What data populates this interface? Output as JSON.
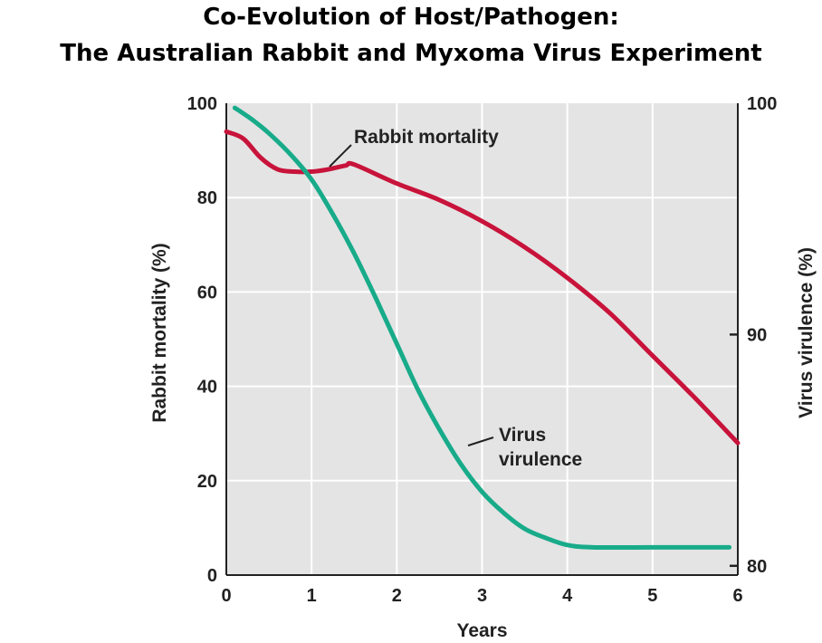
{
  "title_line1": "Co-Evolution of Host/Pathogen:",
  "title_line2": "The Australian Rabbit and Myxoma Virus Experiment",
  "chart_data": {
    "type": "line",
    "xlabel": "Years",
    "ylabel_left": "Rabbit mortality (%)",
    "ylabel_right": "Virus virulence (%)",
    "xlim": [
      0,
      6
    ],
    "ylim_left": [
      0,
      100
    ],
    "ylim_right": [
      79.6,
      100
    ],
    "x_ticks": [
      "0",
      "1",
      "2",
      "3",
      "4",
      "5",
      "6"
    ],
    "y_ticks_left": [
      "0",
      "20",
      "40",
      "60",
      "80",
      "100"
    ],
    "y_ticks_right": [
      "80",
      "90",
      "100"
    ],
    "grid": true,
    "colors": {
      "plot_bg": "#e4e4e4",
      "grid": "#ffffff",
      "rabbit": "#c8133a",
      "virus": "#18ab8a"
    },
    "series": [
      {
        "name": "Rabbit mortality",
        "axis": "left",
        "x": [
          0,
          0.2,
          0.4,
          0.6,
          0.8,
          1.0,
          1.2,
          1.4,
          1.5,
          2.0,
          2.5,
          3.0,
          3.5,
          4.0,
          4.5,
          5.0,
          5.5,
          6.0
        ],
        "y": [
          94,
          92.5,
          88.5,
          86,
          85.5,
          85.5,
          86,
          86.8,
          87,
          83,
          79.5,
          75,
          69.5,
          63,
          55.5,
          46.5,
          37.5,
          28
        ]
      },
      {
        "name": "Virus virulence",
        "axis": "right",
        "x": [
          0.1,
          0.3,
          0.5,
          0.75,
          1.0,
          1.25,
          1.5,
          1.75,
          2.0,
          2.25,
          2.5,
          2.75,
          3.0,
          3.25,
          3.5,
          3.75,
          4.0,
          4.3,
          5.0,
          5.9
        ],
        "y": [
          99.8,
          99.3,
          98.7,
          97.8,
          96.7,
          95.2,
          93.5,
          91.6,
          89.6,
          87.6,
          85.9,
          84.4,
          83.2,
          82.3,
          81.6,
          81.2,
          80.9,
          80.8,
          80.8,
          80.8
        ]
      }
    ],
    "annotations": [
      {
        "text": "Rabbit mortality",
        "series": "Rabbit mortality"
      },
      {
        "text": "Virus virulence",
        "lines": [
          "Virus",
          "virulence"
        ],
        "series": "Virus virulence"
      }
    ]
  }
}
